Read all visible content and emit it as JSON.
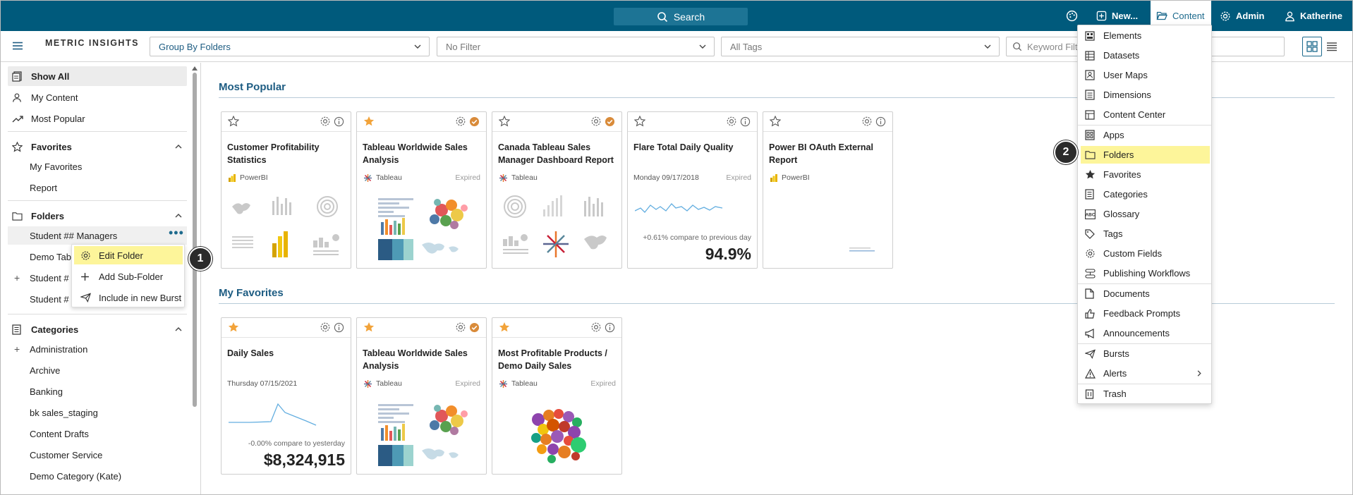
{
  "topbar": {
    "search_label": "Search",
    "new_label": "New...",
    "content_label": "Content",
    "admin_label": "Admin",
    "user_label": "Katherine"
  },
  "toolbar": {
    "logo_text": "METRIC INSIGHTS",
    "group_select": "Group By Folders",
    "filter_select": "No Filter",
    "tags_select": "All Tags",
    "keyword_placeholder": "Keyword Filter"
  },
  "sidebar": {
    "show_all": "Show All",
    "my_content": "My Content",
    "most_popular": "Most Popular",
    "favorites_header": "Favorites",
    "favorites_items": [
      "My Favorites",
      "Report"
    ],
    "folders_header": "Folders",
    "folder_items": [
      "Student ## Managers",
      "Demo Tab",
      "Student #",
      "Student #"
    ],
    "categories_header": "Categories",
    "category_items": [
      "Administration",
      "Archive",
      "Banking",
      "bk sales_staging",
      "Content Drafts",
      "Customer Service",
      "Demo Category (Kate)"
    ]
  },
  "context_menu": {
    "items": [
      "Edit Folder",
      "Add Sub-Folder",
      "Include in new Burst"
    ]
  },
  "sections": {
    "most_popular": "Most Popular",
    "my_favorites": "My Favorites"
  },
  "cards_popular": [
    {
      "title": "Customer Profitability Statistics",
      "source": "PowerBI",
      "expired": "",
      "favorited": false,
      "status": "info"
    },
    {
      "title": "Tableau Worldwide Sales Analysis",
      "source": "Tableau",
      "expired": "Expired",
      "favorited": true,
      "status": "check"
    },
    {
      "title": "Canada Tableau Sales Manager Dashboard Report",
      "source": "Tableau",
      "expired": "",
      "favorited": false,
      "status": "check"
    },
    {
      "title": "Flare Total Daily Quality",
      "date": "Monday 09/17/2018",
      "expired": "Expired",
      "compare": "+0.61% compare to previous day",
      "value": "94.9%",
      "favorited": false,
      "status": "info"
    },
    {
      "title": "Power BI OAuth External Report",
      "source": "PowerBI",
      "expired": "",
      "favorited": false,
      "status": "info"
    }
  ],
  "cards_favorites": [
    {
      "title": "Daily Sales",
      "date": "Thursday 07/15/2021",
      "compare": "-0.00% compare to yesterday",
      "value": "$8,324,915",
      "favorited": true,
      "status": "info"
    },
    {
      "title": "Tableau Worldwide Sales Analysis",
      "source": "Tableau",
      "expired": "Expired",
      "favorited": true,
      "status": "check"
    },
    {
      "title": "Most Profitable Products / Demo Daily Sales",
      "source": "Tableau",
      "expired": "Expired",
      "favorited": true,
      "status": "info"
    }
  ],
  "content_menu": {
    "items": [
      "Elements",
      "Datasets",
      "User Maps",
      "Dimensions",
      "Content Center",
      "Apps",
      "Folders",
      "Favorites",
      "Categories",
      "Glossary",
      "Tags",
      "Custom Fields",
      "Publishing Workflows",
      "Documents",
      "Feedback Prompts",
      "Announcements",
      "Bursts",
      "Alerts",
      "Trash"
    ]
  },
  "callouts": {
    "one": "1",
    "two": "2"
  },
  "colors": {
    "topbar": "#005a7c",
    "accent": "#1d5c82",
    "highlight": "#fdf59a",
    "star": "#f2a33a",
    "check": "#d98b3a"
  }
}
